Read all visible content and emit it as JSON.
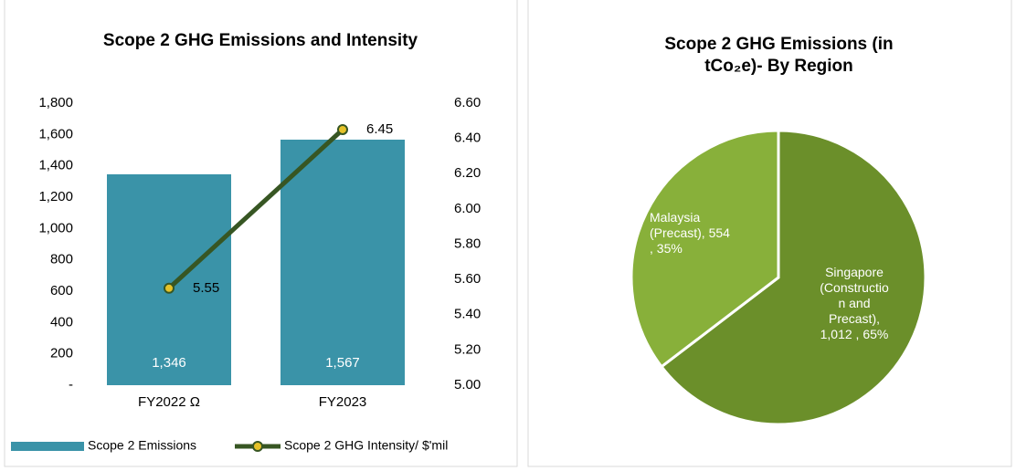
{
  "chart_data": [
    {
      "type": "bar_line",
      "title": "Scope 2 GHG Emissions and Intensity",
      "categories": [
        "FY2022 Ω",
        "FY2023"
      ],
      "series": [
        {
          "name": "Scope 2 Emissions",
          "type": "bar",
          "color": "#3a93a8",
          "values": [
            1346,
            1567
          ],
          "value_labels": [
            "1,346",
            "1,567"
          ]
        },
        {
          "name": "Scope 2 GHG Intensity/ $'mil",
          "type": "line",
          "axis": "y2",
          "color": "#375623",
          "marker_color": "#e6c229",
          "values": [
            5.55,
            6.45
          ]
        }
      ],
      "ylim": [
        0,
        1800
      ],
      "yticks": [
        {
          "value": 0,
          "label": "-"
        },
        200,
        400,
        600,
        800,
        {
          "value": 1000,
          "label": "1,000"
        },
        {
          "value": 1200,
          "label": "1,200"
        },
        {
          "value": 1400,
          "label": "1,400"
        },
        {
          "value": 1600,
          "label": "1,600"
        },
        {
          "value": 1800,
          "label": "1,800"
        }
      ],
      "y2lim": [
        5.0,
        6.6
      ],
      "y2ticks": [
        {
          "value": 5.0,
          "label": "5.00"
        },
        {
          "value": 5.2,
          "label": "5.20"
        },
        {
          "value": 5.4,
          "label": "5.40"
        },
        {
          "value": 5.6,
          "label": "5.60"
        },
        {
          "value": 5.8,
          "label": "5.80"
        },
        {
          "value": 6.0,
          "label": "6.00"
        },
        {
          "value": 6.2,
          "label": "6.20"
        },
        {
          "value": 6.4,
          "label": "6.40"
        },
        {
          "value": 6.6,
          "label": "6.60"
        }
      ],
      "legend": "bottom"
    },
    {
      "type": "pie",
      "title": "Scope 2 GHG Emissions (in tCo₂e)- By Region",
      "labels": [
        "Singapore (Construction and Precast), 1,012 , 65%",
        "Malaysia (Precast), 554 , 35%"
      ],
      "values": [
        1012,
        554
      ],
      "colors": [
        "#6b8f2a",
        "#88b03a"
      ]
    }
  ]
}
